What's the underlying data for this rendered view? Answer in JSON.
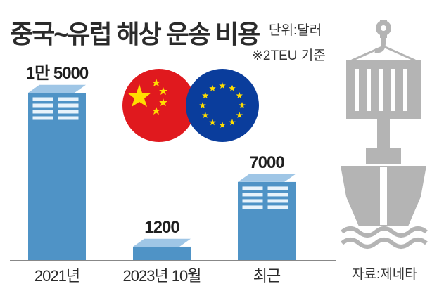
{
  "header": {
    "title": "중국~유럽 해상 운송 비용",
    "unit": "단위:달러",
    "note": "※2TEU 기준"
  },
  "footer": {
    "source": "자료:제네타"
  },
  "chart_data": {
    "type": "bar",
    "title": "중국~유럽 해상 운송 비용",
    "categories": [
      "2021년",
      "2023년 10월",
      "최근"
    ],
    "values": [
      15000,
      1200,
      7000
    ],
    "value_labels": [
      "1만 5000",
      "1200",
      "7000"
    ],
    "unit": "단위:달러",
    "ylim": [
      0,
      15000
    ],
    "grid": false,
    "legend": "none",
    "colors": {
      "bar": "#4f93c6",
      "bar_top": "#9fc6e6",
      "stack": "#e8f3fb"
    }
  },
  "decor": {
    "flags": [
      "china-flag-icon",
      "eu-flag-icon"
    ],
    "ship": "cargo-ship-icon",
    "colors": {
      "china": "#e0191e",
      "eu": "#0a3d9c",
      "star": "#ffde00",
      "ship": "#b4b4b4"
    }
  }
}
